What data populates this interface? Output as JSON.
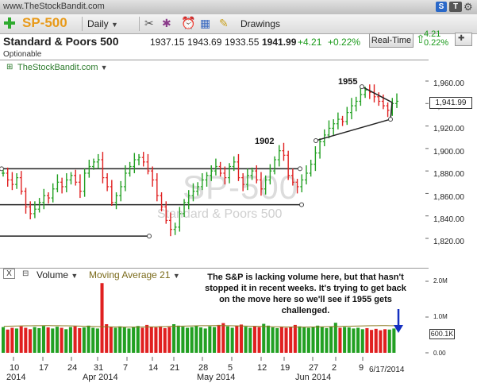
{
  "top_bar": {
    "url": "www.TheStockBandit.com"
  },
  "toolbar": {
    "symbol": "SP-500",
    "interval": "Daily",
    "drawings_label": "Drawings",
    "right_icons": [
      "S",
      "T"
    ]
  },
  "quote": {
    "name": "Standard & Poors 500",
    "open": "1937.15",
    "high": "1943.69",
    "low": "1933.55",
    "last": "1941.99",
    "change": "+4.21",
    "change_pct": "+0.22%",
    "realtime_label": "Real-Time",
    "side_change": "4.21",
    "side_change_pct": "0.22%"
  },
  "optionable": "Optionable",
  "chart": {
    "site_label": "TheStockBandit.com",
    "watermark_symbol": "SP-500",
    "watermark_name": "Standard & Poors 500",
    "annot_1955": "1955",
    "annot_1902": "1902",
    "last_price_box": "1,941.99",
    "price_axis": [
      "1,960.00",
      "1,940.00",
      "1,920.00",
      "1,900.00",
      "1,880.00",
      "1,860.00",
      "1,840.00",
      "1,820.00"
    ]
  },
  "volume": {
    "close_label": "X",
    "label": "Volume",
    "ma_label": "Moving Average 21",
    "axis": [
      "2.0M",
      "1.0M",
      "600.1K",
      "0.00"
    ],
    "annotation": "The S&P is lacking volume here, but that hasn't stopped it in recent weeks. It's trying to get back on the move here so we'll see if 1955 gets challenged."
  },
  "x_axis": {
    "days": [
      "10",
      "17",
      "24",
      "31",
      "7",
      "14",
      "21",
      "28",
      "5",
      "12",
      "19",
      "27",
      "2",
      "9"
    ],
    "months": [
      "2014",
      "Apr 2014",
      "May 2014",
      "Jun 2014"
    ],
    "date_label": "6/17/2014"
  },
  "colors": {
    "up": "#22a022",
    "down": "#e02020",
    "symbol": "#e89a1a"
  }
}
